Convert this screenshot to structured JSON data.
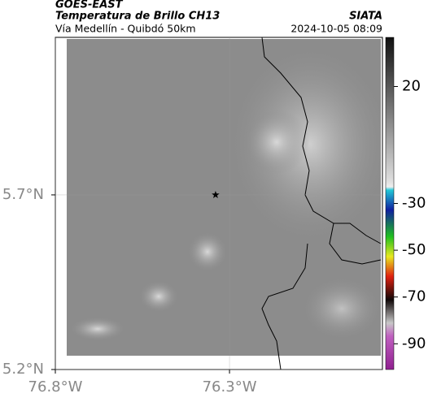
{
  "header": {
    "title": "GOES-EAST",
    "subtitle": "Temperatura de Brillo CH13",
    "route": "Vía Medellín - Quibdó 50km",
    "source": "SIATA",
    "timestamp": "2024-10-05 08:09"
  },
  "map": {
    "xlim": [
      -76.8,
      -75.861
    ],
    "ylim": [
      5.2,
      6.151
    ],
    "xticks": [
      {
        "value": -76.8,
        "label": "76.8°W"
      },
      {
        "value": -76.3,
        "label": "76.3°W"
      }
    ],
    "yticks": [
      {
        "value": 5.2,
        "label": "5.2°N"
      },
      {
        "value": 5.7,
        "label": "5.7°N"
      }
    ],
    "marker": {
      "lon": -76.34,
      "lat": 5.7
    }
  },
  "colorbar": {
    "lim": [
      -101,
      41
    ],
    "ticks": [
      20,
      -30,
      -50,
      -70,
      -90
    ]
  }
}
